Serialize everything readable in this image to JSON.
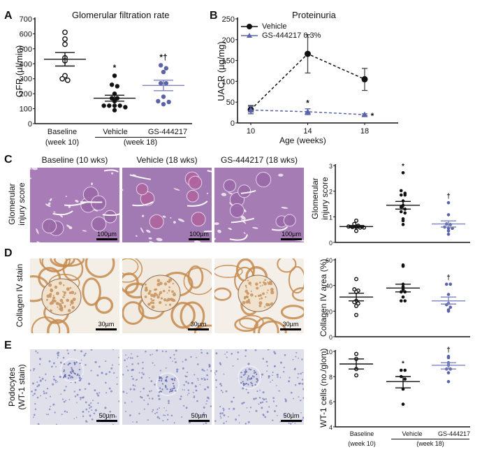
{
  "figure": {
    "panels": {
      "A": {
        "label": "A",
        "title": "Glomerular filtration rate",
        "ylabel": "GFR (µl/min)"
      },
      "B": {
        "label": "B",
        "title": "Proteinuria",
        "ylabel": "UACR (µg/mg)",
        "xlabel": "Age (weeks)"
      },
      "C": {
        "label": "C",
        "row_label_line1": "Glomerular",
        "row_label_line2": "injury score",
        "scale": "100µm",
        "chart_ylabel_line1": "Glomerular",
        "chart_ylabel_line2": "injury score"
      },
      "D": {
        "label": "D",
        "row_label": "Collagen IV stain",
        "scale": "30µm",
        "chart_ylabel": "Collagen IV area (%)"
      },
      "E": {
        "label": "E",
        "row_label_line1": "Podocytes",
        "row_label_line2": "(WT-1 stain)",
        "scale": "50µm",
        "chart_ylabel": "WT-1 cells (no./glom)"
      }
    },
    "column_titles": [
      "Baseline (10 wks)",
      "Vehicle (18 wks)",
      "GS-444217 (18 wks)"
    ],
    "group_labels": {
      "baseline": "Baseline",
      "baseline_week": "(week 10)",
      "vehicle": "Vehicle",
      "treatment": "GS-444217",
      "week18": "(week 18)"
    },
    "legend": {
      "vehicle": "Vehicle",
      "treatment": "GS-444217 0.3%"
    },
    "colors": {
      "black": "#111111",
      "blue": "#5a62a8",
      "blue_light": "#7d84c2",
      "he_stain": "#a97fb6",
      "collagen_bg": "#f4f0ea",
      "collagen_line": "#c58a4c",
      "wt1_bg": "#dcdde8"
    },
    "annotations": {
      "star": "*",
      "dagger": "†",
      "star_dagger": "*†"
    }
  },
  "chart_data": [
    {
      "id": "A",
      "type": "scatter",
      "title": "Glomerular filtration rate",
      "xlabel": "",
      "ylabel": "GFR (µl/min)",
      "ylim": [
        0,
        700
      ],
      "yticks": [
        0,
        100,
        200,
        300,
        400,
        500,
        600,
        700
      ],
      "categories": [
        "Baseline (week 10)",
        "Vehicle (week 18)",
        "GS-444217 (week 18)"
      ],
      "series": [
        {
          "name": "Baseline",
          "marker": "open-circle",
          "values": [
            610,
            565,
            530,
            440,
            420,
            320,
            300,
            290
          ],
          "mean": 430,
          "sem": [
            385,
            475
          ]
        },
        {
          "name": "Vehicle",
          "marker": "filled-circle",
          "values": [
            320,
            260,
            250,
            200,
            170,
            170,
            150,
            120,
            120,
            120,
            120,
            110,
            90
          ],
          "mean": 170,
          "sem": [
            150,
            190
          ],
          "annotation": "*"
        },
        {
          "name": "GS-444217",
          "marker": "filled-circle-blue",
          "values": [
            390,
            370,
            345,
            270,
            270,
            180,
            150,
            130,
            145
          ],
          "mean": 255,
          "sem": [
            220,
            290
          ],
          "annotation": "*†"
        }
      ]
    },
    {
      "id": "B",
      "type": "line",
      "title": "Proteinuria",
      "xlabel": "Age (weeks)",
      "ylabel": "UACR (µg/mg)",
      "x": [
        10,
        14,
        18
      ],
      "ylim": [
        0,
        250
      ],
      "yticks": [
        0,
        50,
        100,
        150,
        200,
        250
      ],
      "legend_position": "upper-left",
      "series": [
        {
          "name": "Vehicle",
          "marker": "circle",
          "style": "dashed",
          "values": [
            32,
            166,
            105
          ],
          "err_low": [
            22,
            120,
            78
          ],
          "err_high": [
            42,
            212,
            131
          ]
        },
        {
          "name": "GS-444217 0.3%",
          "marker": "triangle",
          "style": "dashed",
          "values": [
            31,
            27,
            20
          ],
          "err_low": [
            22,
            20,
            18
          ],
          "err_high": [
            40,
            34,
            22
          ],
          "annotations": [
            "",
            "*",
            "*"
          ]
        }
      ]
    },
    {
      "id": "C",
      "type": "scatter",
      "ylabel": "Glomerular injury score",
      "ylim": [
        0,
        3
      ],
      "yticks": [
        0,
        1,
        2,
        3
      ],
      "categories": [
        "Baseline",
        "Vehicle",
        "GS-444217"
      ],
      "series": [
        {
          "name": "Baseline",
          "marker": "open-circle",
          "values": [
            0.85,
            0.72,
            0.65,
            0.62,
            0.6,
            0.6,
            0.58,
            0.58,
            0.45
          ],
          "mean": 0.62,
          "sem": [
            0.58,
            0.66
          ]
        },
        {
          "name": "Vehicle",
          "marker": "filled-circle",
          "values": [
            2.72,
            2.02,
            1.92,
            1.85,
            1.85,
            1.62,
            1.45,
            1.38,
            1.3,
            1.2,
            1.15,
            0.92,
            0.85,
            0.7
          ],
          "mean": 1.45,
          "sem": [
            1.3,
            1.6
          ],
          "annotation": "*"
        },
        {
          "name": "GS-444217",
          "marker": "filled-circle-blue",
          "values": [
            1.55,
            1.08,
            0.72,
            0.7,
            0.6,
            0.55,
            0.55,
            0.45,
            0.32
          ],
          "mean": 0.72,
          "sem": [
            0.6,
            0.84
          ],
          "annotation": "†"
        }
      ]
    },
    {
      "id": "D",
      "type": "scatter",
      "ylabel": "Collagen IV area (%)",
      "ylim": [
        0,
        60
      ],
      "yticks": [
        0,
        20,
        40,
        60
      ],
      "categories": [
        "Baseline",
        "Vehicle",
        "GS-444217"
      ],
      "series": [
        {
          "name": "Baseline",
          "marker": "open-circle",
          "values": [
            45,
            37,
            36,
            35,
            28,
            27,
            26,
            24,
            17
          ],
          "mean": 31,
          "sem": [
            28,
            34
          ],
          "annotation": ""
        },
        {
          "name": "Vehicle",
          "marker": "filled-circle",
          "values": [
            56,
            55,
            41,
            39,
            37,
            35,
            35,
            31,
            28,
            28
          ],
          "mean": 38,
          "sem": [
            35,
            41
          ]
        },
        {
          "name": "GS-444217",
          "marker": "filled-circle-blue",
          "values": [
            41,
            41,
            33,
            26,
            25,
            23,
            21,
            20
          ],
          "mean": 28,
          "sem": [
            25.5,
            31
          ],
          "annotation": "†"
        }
      ]
    },
    {
      "id": "E",
      "type": "scatter",
      "ylabel": "WT-1 cells (no./glom)",
      "ylim": [
        4,
        10
      ],
      "yticks": [
        4,
        6,
        8,
        10
      ],
      "categories": [
        "Baseline (week 10)",
        "Vehicle (week 18)",
        "GS-444217 (week 18)"
      ],
      "series": [
        {
          "name": "Baseline",
          "marker": "open-circle",
          "values": [
            9.8,
            9.4,
            8.6,
            8.1
          ],
          "mean": 9.0,
          "sem": [
            8.6,
            9.4
          ]
        },
        {
          "name": "Vehicle",
          "marker": "filled-circle",
          "values": [
            8.5,
            8.5,
            8.0,
            7.8,
            7.0,
            5.8
          ],
          "mean": 7.6,
          "sem": [
            7.1,
            8.0
          ],
          "annotation": "*"
        },
        {
          "name": "GS-444217",
          "marker": "filled-circle-blue",
          "values": [
            9.6,
            9.5,
            9.1,
            8.9,
            8.6,
            8.6,
            8.3,
            7.6
          ],
          "mean": 8.9,
          "sem": [
            8.6,
            9.1
          ],
          "annotation": "†"
        }
      ]
    }
  ]
}
